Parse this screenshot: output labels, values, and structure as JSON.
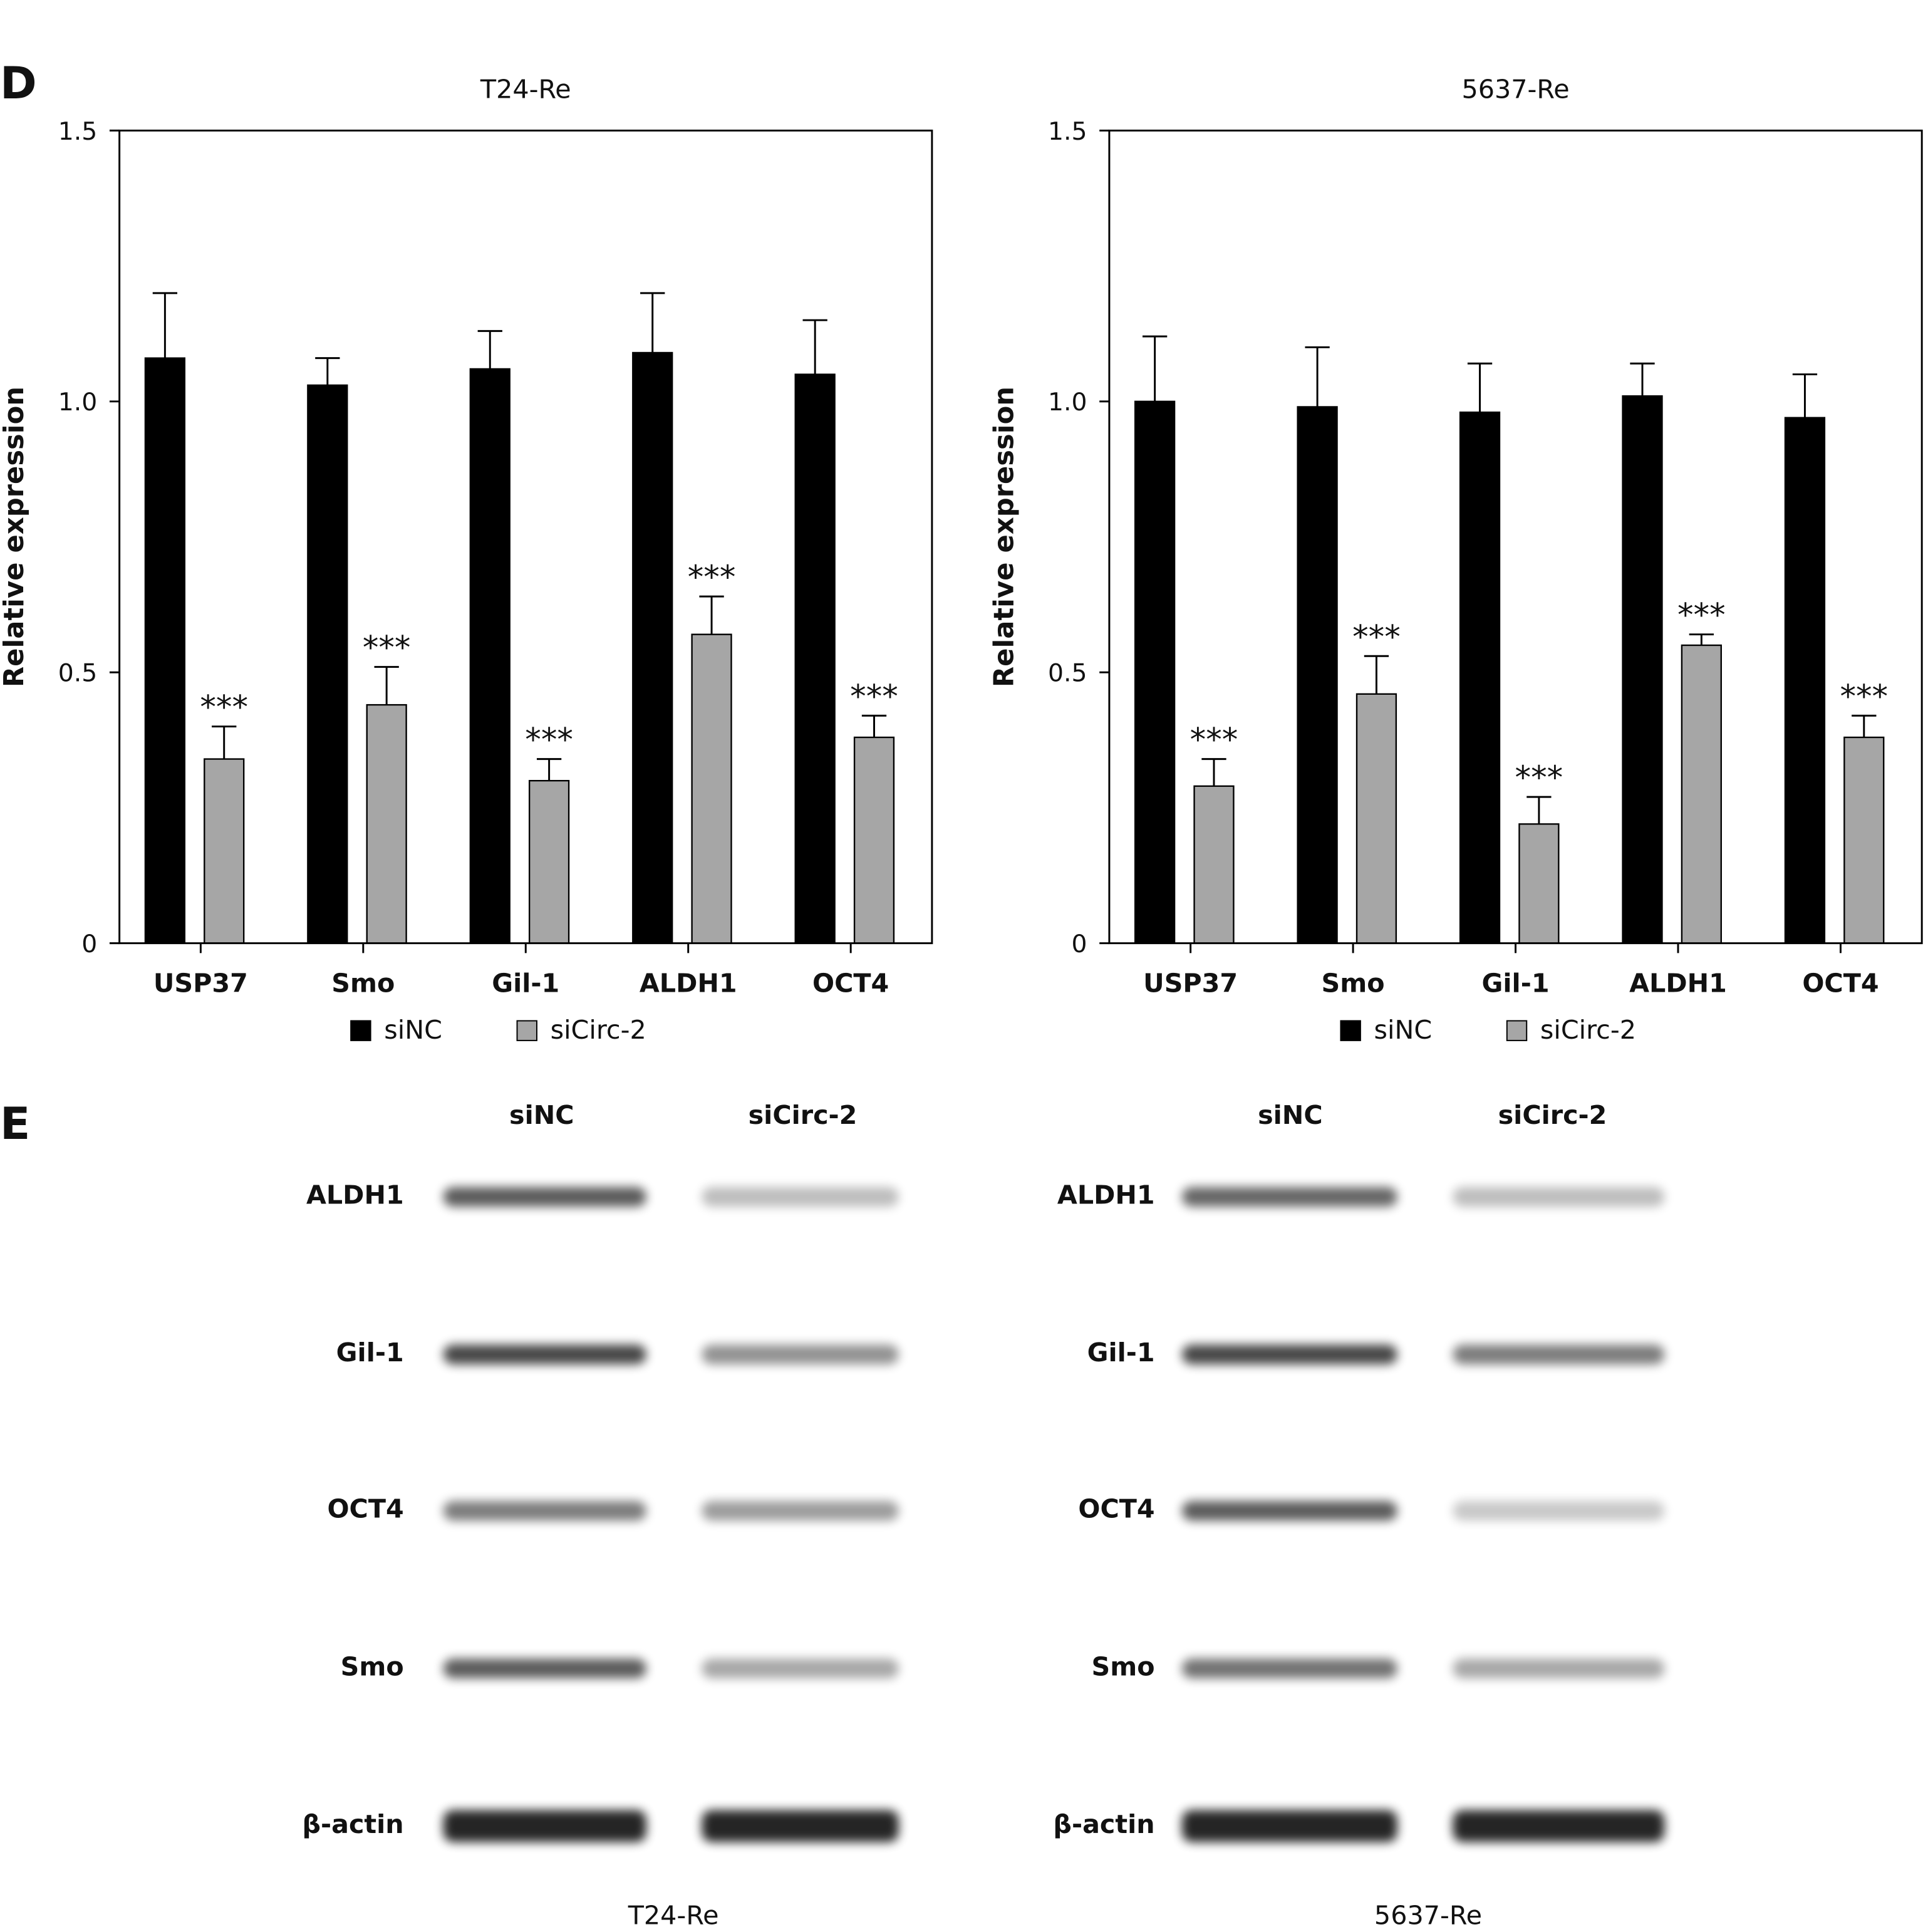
{
  "panel_labels": [
    "D",
    "E"
  ],
  "chart_data": [
    {
      "type": "bar",
      "title": "T24-Re",
      "ylabel": "Relative expression",
      "categories": [
        "USP37",
        "Smo",
        "Gil-1",
        "ALDH1",
        "OCT4"
      ],
      "series": [
        {
          "name": "siNC",
          "color": "#000000",
          "values": [
            1.08,
            1.03,
            1.06,
            1.09,
            1.05
          ],
          "errors": [
            0.12,
            0.05,
            0.07,
            0.11,
            0.1
          ]
        },
        {
          "name": "siCirc-2",
          "color": "#a6a6a6",
          "values": [
            0.34,
            0.44,
            0.3,
            0.57,
            0.38
          ],
          "errors": [
            0.06,
            0.07,
            0.04,
            0.07,
            0.04
          ]
        }
      ],
      "annotations": [
        "***",
        "***",
        "***",
        "***",
        "***"
      ],
      "ylim": [
        0,
        1.5
      ],
      "yticks": [
        0,
        0.5,
        {
          "value": 1,
          "label": "1.0"
        },
        1.5
      ]
    },
    {
      "type": "bar",
      "title": "5637-Re",
      "ylabel": "Relative expression",
      "categories": [
        "USP37",
        "Smo",
        "Gil-1",
        "ALDH1",
        "OCT4"
      ],
      "series": [
        {
          "name": "siNC",
          "color": "#000000",
          "values": [
            1.0,
            0.99,
            0.98,
            1.01,
            0.97
          ],
          "errors": [
            0.12,
            0.11,
            0.09,
            0.06,
            0.08
          ]
        },
        {
          "name": "siCirc-2",
          "color": "#a6a6a6",
          "values": [
            0.29,
            0.46,
            0.22,
            0.55,
            0.38
          ],
          "errors": [
            0.05,
            0.07,
            0.05,
            0.02,
            0.04
          ]
        }
      ],
      "annotations": [
        "***",
        "***",
        "***",
        "***",
        "***"
      ],
      "ylim": [
        0,
        1.5
      ],
      "yticks": [
        0,
        0.5,
        {
          "value": 1,
          "label": "1.0"
        },
        1.5
      ]
    }
  ],
  "blots": [
    {
      "title": "T24-Re",
      "columns": [
        "siNC",
        "siCirc-2"
      ],
      "rows": [
        "ALDH1",
        "Gil-1",
        "OCT4",
        "Smo",
        "β-actin"
      ]
    },
    {
      "title": "5637-Re",
      "columns": [
        "siNC",
        "siCirc-2"
      ],
      "rows": [
        "ALDH1",
        "Gil-1",
        "OCT4",
        "Smo",
        "β-actin"
      ]
    }
  ]
}
